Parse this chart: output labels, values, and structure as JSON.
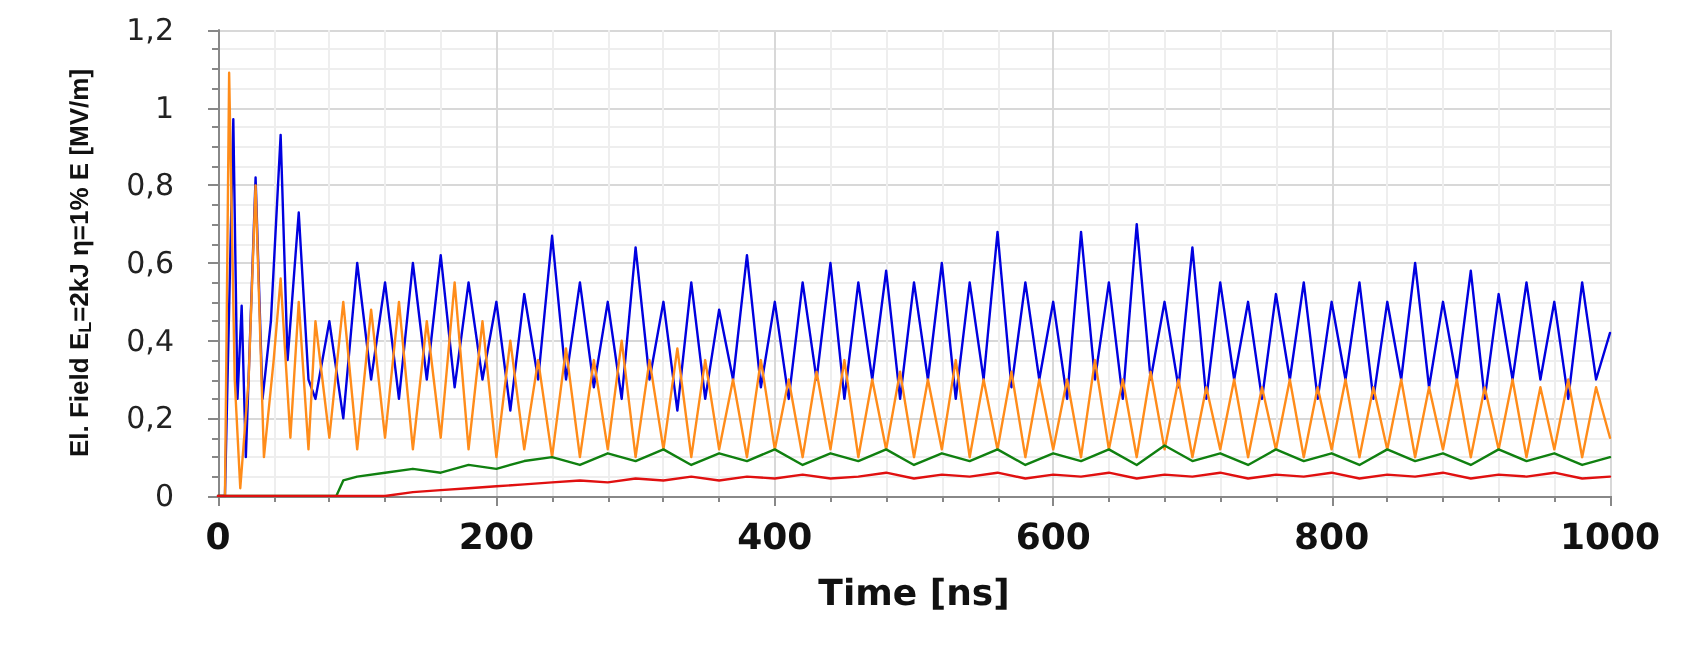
{
  "chart_data": {
    "type": "line",
    "xlabel": "Time [ns]",
    "ylabel": "El. Field E$_{L}$=2kJ η=1% E [MV/m]",
    "xlim": [
      0,
      1000
    ],
    "xticks": [
      0,
      200,
      400,
      600,
      800,
      1000
    ],
    "ylim": [
      0,
      1.2
    ],
    "yticks": [
      {
        "value": 0,
        "label": "0"
      },
      {
        "value": 0.2,
        "label": "0,2"
      },
      {
        "value": 0.4,
        "label": "0,4"
      },
      {
        "value": 0.6,
        "label": "0,6"
      },
      {
        "value": 0.8,
        "label": "0,8"
      },
      {
        "value": 1,
        "label": "1"
      },
      {
        "value": 1.2,
        "label": "1,2"
      }
    ],
    "grid": true,
    "marker": "none",
    "line_style": "solid",
    "series": [
      {
        "color": "#0000e0",
        "x": [
          0,
          5,
          11,
          14,
          17,
          20,
          27,
          32,
          38,
          45,
          50,
          58,
          65,
          70,
          80,
          90,
          100,
          110,
          120,
          130,
          140,
          150,
          160,
          170,
          180,
          190,
          200,
          210,
          220,
          230,
          240,
          250,
          260,
          270,
          280,
          290,
          300,
          310,
          320,
          330,
          340,
          350,
          360,
          370,
          380,
          390,
          400,
          410,
          420,
          430,
          440,
          450,
          460,
          470,
          480,
          490,
          500,
          510,
          520,
          530,
          540,
          550,
          560,
          570,
          580,
          590,
          600,
          610,
          620,
          630,
          640,
          650,
          660,
          670,
          680,
          690,
          700,
          710,
          720,
          730,
          740,
          750,
          760,
          770,
          780,
          790,
          800,
          810,
          820,
          830,
          840,
          850,
          860,
          870,
          880,
          890,
          900,
          910,
          920,
          930,
          940,
          950,
          960,
          970,
          980,
          990,
          1000
        ],
        "values": [
          0,
          0,
          0.97,
          0.25,
          0.49,
          0.1,
          0.82,
          0.25,
          0.45,
          0.93,
          0.35,
          0.73,
          0.3,
          0.25,
          0.45,
          0.2,
          0.6,
          0.3,
          0.55,
          0.25,
          0.6,
          0.3,
          0.62,
          0.28,
          0.55,
          0.3,
          0.5,
          0.22,
          0.52,
          0.3,
          0.67,
          0.3,
          0.55,
          0.28,
          0.5,
          0.25,
          0.64,
          0.3,
          0.5,
          0.22,
          0.55,
          0.25,
          0.48,
          0.3,
          0.62,
          0.28,
          0.5,
          0.25,
          0.55,
          0.3,
          0.6,
          0.25,
          0.55,
          0.3,
          0.58,
          0.25,
          0.55,
          0.3,
          0.6,
          0.25,
          0.55,
          0.3,
          0.68,
          0.28,
          0.55,
          0.3,
          0.5,
          0.25,
          0.68,
          0.3,
          0.55,
          0.25,
          0.7,
          0.3,
          0.5,
          0.28,
          0.64,
          0.25,
          0.55,
          0.3,
          0.5,
          0.25,
          0.52,
          0.3,
          0.55,
          0.25,
          0.5,
          0.3,
          0.55,
          0.25,
          0.5,
          0.3,
          0.6,
          0.28,
          0.5,
          0.3,
          0.58,
          0.25,
          0.52,
          0.3,
          0.55,
          0.3,
          0.5,
          0.25,
          0.55,
          0.3,
          0.42
        ]
      },
      {
        "color": "#ff8c1a",
        "x": [
          0,
          5,
          8,
          12,
          16,
          22,
          27,
          33,
          40,
          45,
          52,
          58,
          65,
          70,
          80,
          90,
          100,
          110,
          120,
          130,
          140,
          150,
          160,
          170,
          180,
          190,
          200,
          210,
          220,
          230,
          240,
          250,
          260,
          270,
          280,
          290,
          300,
          310,
          320,
          330,
          340,
          350,
          360,
          370,
          380,
          390,
          400,
          410,
          420,
          430,
          440,
          450,
          460,
          470,
          480,
          490,
          500,
          510,
          520,
          530,
          540,
          550,
          560,
          570,
          580,
          590,
          600,
          610,
          620,
          630,
          640,
          650,
          660,
          670,
          680,
          690,
          700,
          710,
          720,
          730,
          740,
          750,
          760,
          770,
          780,
          790,
          800,
          810,
          820,
          830,
          840,
          850,
          860,
          870,
          880,
          890,
          900,
          910,
          920,
          930,
          940,
          950,
          960,
          970,
          980,
          990,
          1000
        ],
        "values": [
          0,
          0,
          1.09,
          0.3,
          0.02,
          0.3,
          0.8,
          0.1,
          0.35,
          0.56,
          0.15,
          0.5,
          0.12,
          0.45,
          0.15,
          0.5,
          0.12,
          0.48,
          0.15,
          0.5,
          0.12,
          0.45,
          0.15,
          0.55,
          0.12,
          0.45,
          0.1,
          0.4,
          0.12,
          0.35,
          0.1,
          0.38,
          0.1,
          0.35,
          0.12,
          0.4,
          0.1,
          0.35,
          0.12,
          0.38,
          0.1,
          0.35,
          0.12,
          0.3,
          0.1,
          0.35,
          0.12,
          0.3,
          0.1,
          0.32,
          0.12,
          0.35,
          0.1,
          0.3,
          0.12,
          0.32,
          0.1,
          0.3,
          0.12,
          0.35,
          0.1,
          0.3,
          0.12,
          0.32,
          0.1,
          0.3,
          0.12,
          0.3,
          0.1,
          0.35,
          0.12,
          0.3,
          0.1,
          0.32,
          0.12,
          0.3,
          0.1,
          0.28,
          0.12,
          0.3,
          0.1,
          0.28,
          0.12,
          0.3,
          0.1,
          0.28,
          0.12,
          0.3,
          0.1,
          0.28,
          0.12,
          0.3,
          0.1,
          0.28,
          0.12,
          0.3,
          0.1,
          0.28,
          0.12,
          0.3,
          0.1,
          0.28,
          0.12,
          0.3,
          0.1,
          0.28,
          0.15
        ]
      },
      {
        "color": "#108010",
        "x": [
          0,
          85,
          90,
          100,
          120,
          140,
          160,
          180,
          200,
          220,
          240,
          260,
          280,
          300,
          320,
          340,
          360,
          380,
          400,
          420,
          440,
          460,
          480,
          500,
          520,
          540,
          560,
          580,
          600,
          620,
          640,
          660,
          680,
          700,
          720,
          740,
          760,
          780,
          800,
          820,
          840,
          860,
          880,
          900,
          920,
          940,
          960,
          980,
          1000
        ],
        "values": [
          0,
          0,
          0.04,
          0.05,
          0.06,
          0.07,
          0.06,
          0.08,
          0.07,
          0.09,
          0.1,
          0.08,
          0.11,
          0.09,
          0.12,
          0.08,
          0.11,
          0.09,
          0.12,
          0.08,
          0.11,
          0.09,
          0.12,
          0.08,
          0.11,
          0.09,
          0.12,
          0.08,
          0.11,
          0.09,
          0.12,
          0.08,
          0.13,
          0.09,
          0.11,
          0.08,
          0.12,
          0.09,
          0.11,
          0.08,
          0.12,
          0.09,
          0.11,
          0.08,
          0.12,
          0.09,
          0.11,
          0.08,
          0.1
        ]
      },
      {
        "color": "#e01010",
        "x": [
          0,
          120,
          140,
          160,
          180,
          200,
          220,
          240,
          260,
          280,
          300,
          320,
          340,
          360,
          380,
          400,
          420,
          440,
          460,
          480,
          500,
          520,
          540,
          560,
          580,
          600,
          620,
          640,
          660,
          680,
          700,
          720,
          740,
          760,
          780,
          800,
          820,
          840,
          860,
          880,
          900,
          920,
          940,
          960,
          980,
          1000
        ],
        "values": [
          0,
          0,
          0.01,
          0.015,
          0.02,
          0.025,
          0.03,
          0.035,
          0.04,
          0.035,
          0.045,
          0.04,
          0.05,
          0.04,
          0.05,
          0.045,
          0.055,
          0.045,
          0.05,
          0.06,
          0.045,
          0.055,
          0.05,
          0.06,
          0.045,
          0.055,
          0.05,
          0.06,
          0.045,
          0.055,
          0.05,
          0.06,
          0.045,
          0.055,
          0.05,
          0.06,
          0.045,
          0.055,
          0.05,
          0.06,
          0.045,
          0.055,
          0.05,
          0.06,
          0.045,
          0.05
        ]
      }
    ]
  }
}
